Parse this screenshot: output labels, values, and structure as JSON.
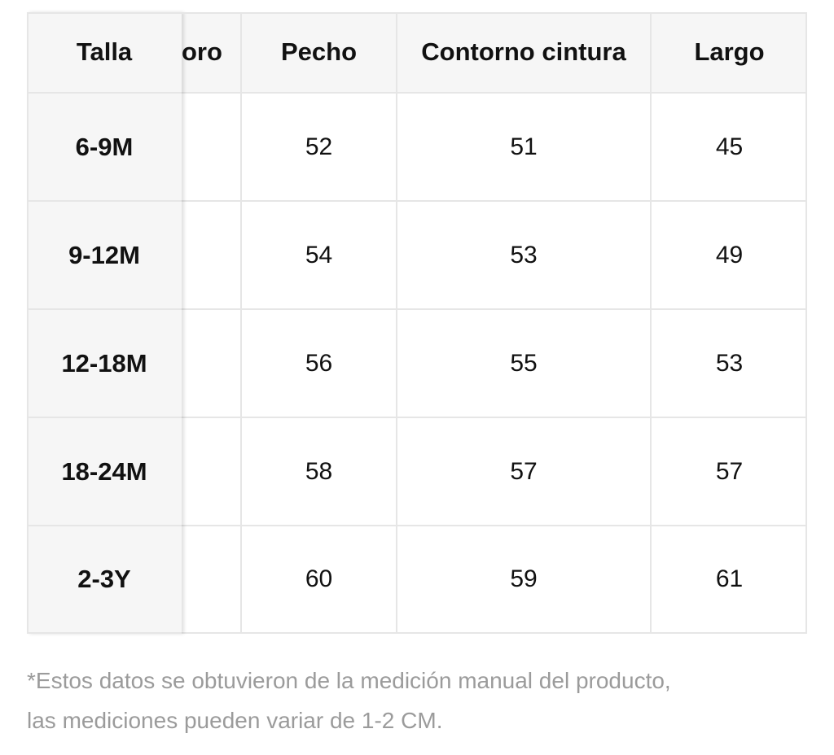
{
  "table": {
    "frozen_header": "Talla",
    "partial_header": "oro",
    "headers": [
      "Pecho",
      "Contorno cintura",
      "Largo"
    ],
    "rows": [
      {
        "size": "6-9M",
        "values": [
          "52",
          "51",
          "45"
        ]
      },
      {
        "size": "9-12M",
        "values": [
          "54",
          "53",
          "49"
        ]
      },
      {
        "size": "12-18M",
        "values": [
          "56",
          "55",
          "53"
        ]
      },
      {
        "size": "18-24M",
        "values": [
          "58",
          "57",
          "57"
        ]
      },
      {
        "size": "2-3Y",
        "values": [
          "60",
          "59",
          "61"
        ]
      }
    ]
  },
  "note": {
    "line1": "*Estos datos se obtuvieron de la medición manual del producto,",
    "line2": "las mediciones pueden variar de 1-2 CM."
  },
  "colors": {
    "header_bg": "#f6f6f6",
    "grid_line": "#e6e6e6",
    "note_text": "#9b9b9b"
  }
}
